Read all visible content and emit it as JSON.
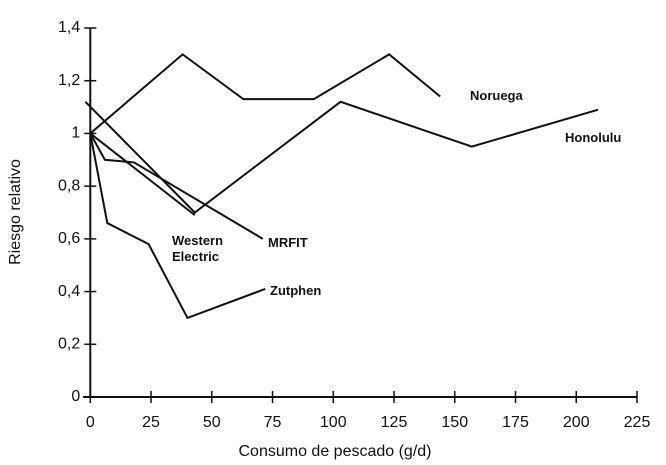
{
  "chart_data": {
    "type": "line",
    "xlabel": "Consumo de pescado (g/d)",
    "ylabel": "Riesgo relativo",
    "xlim": [
      -3,
      225
    ],
    "ylim": [
      0,
      1.4
    ],
    "xticks": [
      0,
      25,
      50,
      75,
      100,
      125,
      150,
      175,
      200,
      225
    ],
    "yticks": [
      0,
      {
        "value": 0.2,
        "label": "0,2"
      },
      {
        "value": 0.4,
        "label": "0,4"
      },
      {
        "value": 0.6,
        "label": "0,6"
      },
      {
        "value": 0.8,
        "label": "0,8"
      },
      1,
      {
        "value": 1.2,
        "label": "1,2"
      },
      {
        "value": 1.4,
        "label": "1,4"
      }
    ],
    "series": [
      {
        "name": "Noruega",
        "color": "#111111",
        "x": [
          0,
          38,
          63,
          92,
          123,
          144
        ],
        "values": [
          1.0,
          1.3,
          1.13,
          1.13,
          1.3,
          1.14
        ]
      },
      {
        "name": "Honolulu",
        "color": "#111111",
        "x": [
          -2,
          43,
          103,
          157,
          209
        ],
        "values": [
          1.12,
          0.7,
          1.12,
          0.95,
          1.09
        ]
      },
      {
        "name": "MRFIT",
        "color": "#111111",
        "x": [
          0,
          6,
          18,
          71
        ],
        "values": [
          1.0,
          0.9,
          0.89,
          0.6
        ]
      },
      {
        "name": "Western Electric",
        "color": "#111111",
        "x": [
          0,
          43
        ],
        "values": [
          1.0,
          0.69
        ]
      },
      {
        "name": "Zutphen",
        "color": "#111111",
        "x": [
          0,
          7,
          24,
          40,
          72
        ],
        "values": [
          1.0,
          0.66,
          0.58,
          0.3,
          0.41
        ]
      }
    ]
  }
}
